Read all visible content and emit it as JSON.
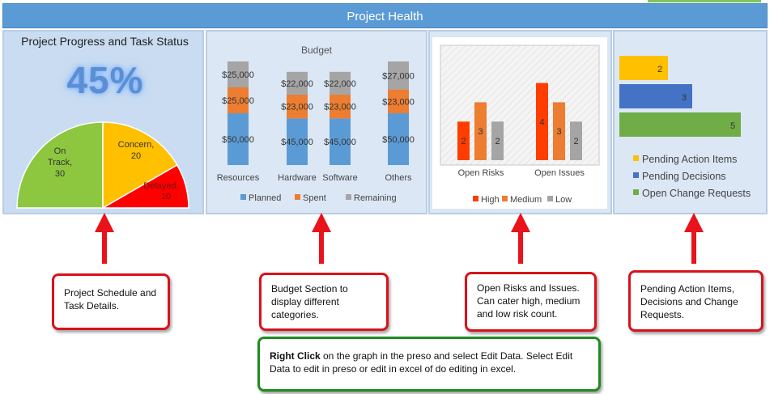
{
  "banner": {
    "title": "Project Health"
  },
  "progress": {
    "title": "Project Progress and Task Status",
    "percent_text": "45%",
    "pie": [
      {
        "label_line1": "On",
        "label_line2": "Track,",
        "value": 30,
        "color": "#8dc63f"
      },
      {
        "label_line1": "Concern,",
        "label_line2": "",
        "value": 20,
        "color": "#ffc000"
      },
      {
        "label_line1": "Delayed,",
        "label_line2": "",
        "value": 10,
        "color": "#ff0000"
      }
    ]
  },
  "budget": {
    "title": "Budget",
    "legend": [
      "Planned",
      "Spent",
      "Remaining"
    ],
    "colors": {
      "planned": "#5b9bd5",
      "spent": "#ed7d31",
      "remaining": "#a5a5a5"
    },
    "categories": [
      "Resources",
      "Hardware",
      "Software",
      "Others"
    ],
    "labels": {
      "planned": [
        "$50,000",
        "$45,000",
        "$45,000",
        "$50,000"
      ],
      "spent": [
        "$25,000",
        "$23,000",
        "$23,000",
        "$23,000"
      ],
      "remaining": [
        "$25,000",
        "$22,000",
        "$22,000",
        "$27,000"
      ]
    }
  },
  "risks": {
    "categories": [
      "Open Risks",
      "Open Issues"
    ],
    "legend": [
      "High",
      "Medium",
      "Low"
    ],
    "colors": {
      "high": "#ff3d00",
      "medium": "#ed7d31",
      "low": "#a5a5a5"
    }
  },
  "pending": {
    "bars": [
      {
        "label": "Pending Action Items",
        "value": 2,
        "value_text": "2",
        "color": "#ffc000"
      },
      {
        "label": "Pending Decisions",
        "value": 3,
        "value_text": "3",
        "color": "#4472c4"
      },
      {
        "label": "Open Change Requests",
        "value": 5,
        "value_text": "5",
        "color": "#70ad47"
      }
    ]
  },
  "callouts": {
    "schedule": "Project Schedule and Task Details.",
    "budget": "Budget Section to display different categories.",
    "risks": "Open Risks and Issues. Can cater high, medium and low risk count.",
    "pending": "Pending Action Items, Decisions and Change Requests.",
    "edit_bold": "Right Click",
    "edit_rest": " on the graph in the preso and select Edit Data. Select Edit Data to edit in preso or edit in excel of do editing in excel."
  },
  "chart_data": [
    {
      "type": "pie",
      "title": "Project Progress and Task Status",
      "categories": [
        "On Track",
        "Concern",
        "Delayed"
      ],
      "values": [
        30,
        20,
        10
      ]
    },
    {
      "type": "bar",
      "title": "Budget",
      "categories": [
        "Resources",
        "Hardware",
        "Software",
        "Others"
      ],
      "series": [
        {
          "name": "Planned",
          "values": [
            50000,
            45000,
            45000,
            50000
          ]
        },
        {
          "name": "Spent",
          "values": [
            25000,
            23000,
            23000,
            23000
          ]
        },
        {
          "name": "Remaining",
          "values": [
            25000,
            22000,
            22000,
            27000
          ]
        }
      ],
      "legend": "bottom"
    },
    {
      "type": "bar",
      "categories": [
        "Open Risks",
        "Open Issues"
      ],
      "series": [
        {
          "name": "High",
          "values": [
            2,
            4
          ]
        },
        {
          "name": "Medium",
          "values": [
            3,
            3
          ]
        },
        {
          "name": "Low",
          "values": [
            2,
            2
          ]
        }
      ],
      "ylim": [
        0,
        5
      ],
      "legend": "bottom"
    },
    {
      "type": "bar",
      "categories": [
        "Pending Action Items",
        "Pending Decisions",
        "Open Change Requests"
      ],
      "values": [
        2,
        3,
        5
      ],
      "legend": "bottom"
    }
  ]
}
